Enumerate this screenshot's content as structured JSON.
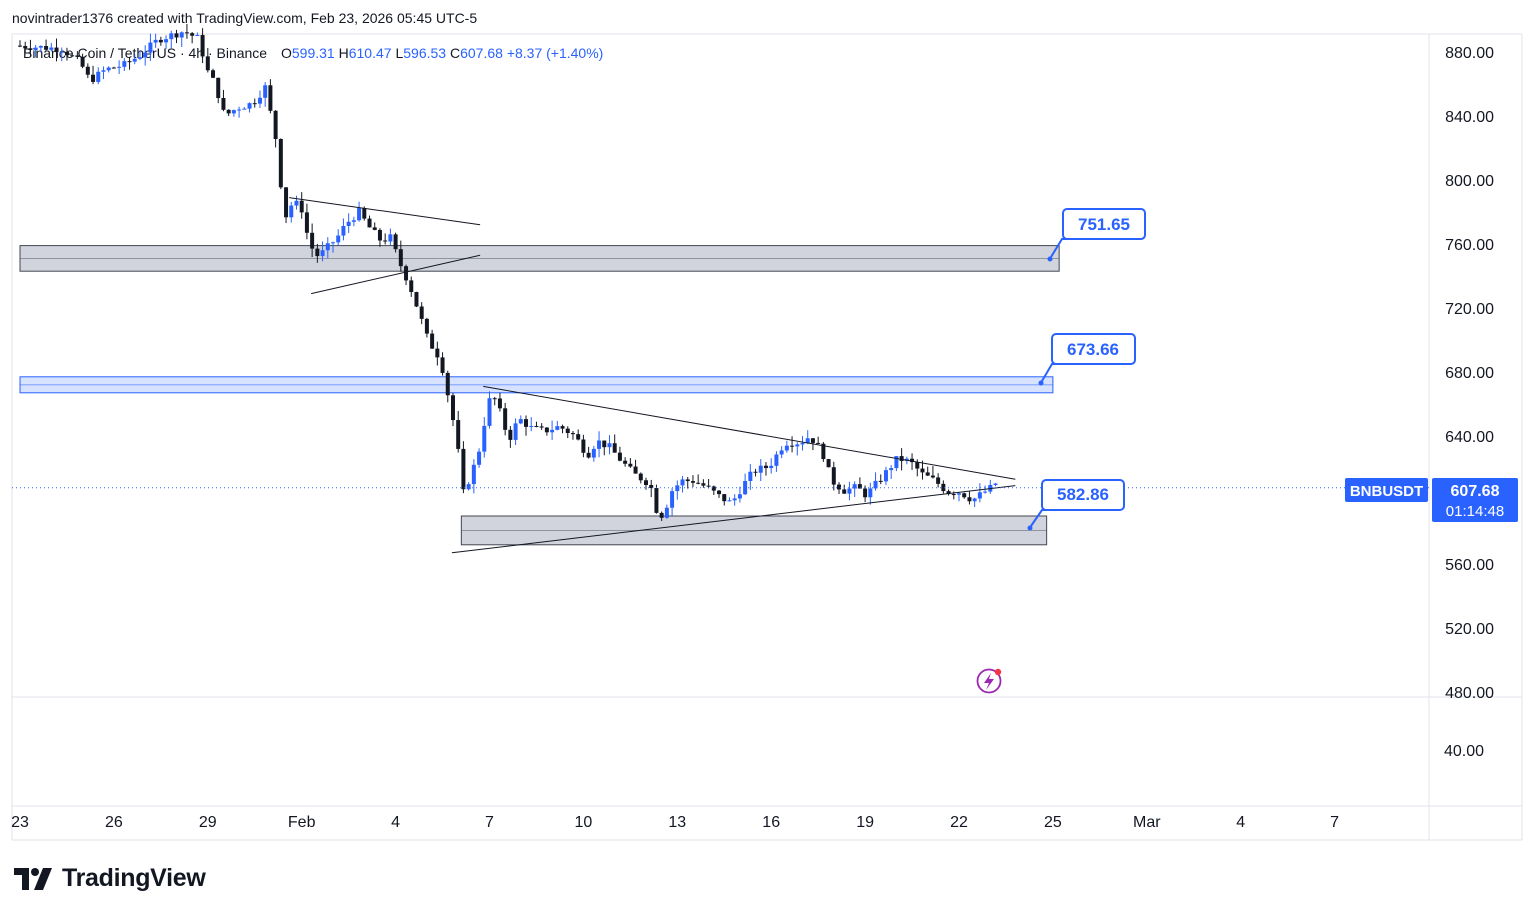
{
  "header": {
    "text": "novintrader1376 created with TradingView.com, Feb 23, 2026 05:45 UTC-5"
  },
  "legend": {
    "title": "Binance Coin / TetherUS · 4h · Binance",
    "open_label": "O",
    "open": "599.31",
    "high_label": "H",
    "high": "610.47",
    "low_label": "L",
    "low": "596.53",
    "close_label": "C",
    "close": "607.68",
    "change": "+8.37 (+1.40%)"
  },
  "colors": {
    "up": "#2962ff",
    "down": "#131722",
    "accent": "#2962ff",
    "zone_gray": "#d1d4dc",
    "zone_blue": "#d6e2ff"
  },
  "price_tag": {
    "symbol": "BNBUSDT",
    "price": "607.68",
    "countdown": "01:14:48"
  },
  "annotations": [
    {
      "text": "751.65"
    },
    {
      "text": "673.66"
    },
    {
      "text": "582.86"
    }
  ],
  "branding": {
    "logo_text": "TradingView"
  },
  "chart_data": {
    "type": "candlestick",
    "interval": "4h",
    "price_axis": [
      "880.00",
      "840.00",
      "800.00",
      "760.00",
      "720.00",
      "680.00",
      "640.00",
      "600.00",
      "560.00",
      "520.00",
      "480.00"
    ],
    "price_ticks": [
      880,
      840,
      800,
      760,
      720,
      680,
      640,
      600,
      560,
      520,
      480
    ],
    "volume_axis_label": "40.00",
    "x_ticks": [
      {
        "label": "23",
        "day": 23
      },
      {
        "label": "26",
        "day": 26
      },
      {
        "label": "29",
        "day": 29
      },
      {
        "label": "Feb",
        "day": 32
      },
      {
        "label": "4",
        "day": 35
      },
      {
        "label": "7",
        "day": 38
      },
      {
        "label": "10",
        "day": 41
      },
      {
        "label": "13",
        "day": 44
      },
      {
        "label": "16",
        "day": 47
      },
      {
        "label": "19",
        "day": 50
      },
      {
        "label": "22",
        "day": 53
      },
      {
        "label": "25",
        "day": 56
      },
      {
        "label": "Mar",
        "day": 59
      },
      {
        "label": "4",
        "day": 62
      },
      {
        "label": "7",
        "day": 65
      }
    ],
    "ylim": [
      460,
      895
    ],
    "zones": [
      {
        "name": "resistance-zone-upper",
        "from_day": 23,
        "to_day": 56.2,
        "low": 743,
        "high": 759,
        "color": "gray"
      },
      {
        "name": "resistance-zone-middle",
        "from_day": 23,
        "to_day": 56,
        "low": 667,
        "high": 677,
        "color": "blue"
      },
      {
        "name": "support-zone-lower",
        "from_day": 37.1,
        "to_day": 55.8,
        "low": 572,
        "high": 590,
        "color": "gray"
      }
    ],
    "trendlines": [
      {
        "name": "pennant-upper",
        "x1": 31.6,
        "y1": 789,
        "x2": 37.7,
        "y2": 772
      },
      {
        "name": "pennant-lower",
        "x1": 32.3,
        "y1": 729,
        "x2": 37.7,
        "y2": 753
      },
      {
        "name": "triangle-upper",
        "x1": 37.8,
        "y1": 671,
        "x2": 54.8,
        "y2": 613
      },
      {
        "name": "triangle-lower",
        "x1": 36.8,
        "y1": 567,
        "x2": 54.8,
        "y2": 609
      }
    ],
    "waypoints": [
      [
        23.0,
        884
      ],
      [
        23.8,
        883
      ],
      [
        24.5,
        882
      ],
      [
        25.1,
        873
      ],
      [
        25.4,
        862
      ],
      [
        25.9,
        869
      ],
      [
        26.5,
        872
      ],
      [
        27.0,
        878
      ],
      [
        27.6,
        888
      ],
      [
        28.4,
        893
      ],
      [
        28.9,
        888
      ],
      [
        29.1,
        870
      ],
      [
        29.4,
        860
      ],
      [
        29.7,
        840
      ],
      [
        30.1,
        845
      ],
      [
        30.6,
        848
      ],
      [
        31.0,
        858
      ],
      [
        31.4,
        820
      ],
      [
        31.6,
        775
      ],
      [
        31.9,
        787
      ],
      [
        32.2,
        781
      ],
      [
        32.4,
        760
      ],
      [
        32.7,
        752
      ],
      [
        33.0,
        758
      ],
      [
        33.3,
        764
      ],
      [
        33.6,
        773
      ],
      [
        34.0,
        780
      ],
      [
        34.3,
        771
      ],
      [
        34.7,
        762
      ],
      [
        35.0,
        764
      ],
      [
        35.3,
        748
      ],
      [
        35.6,
        735
      ],
      [
        35.9,
        718
      ],
      [
        36.2,
        700
      ],
      [
        36.6,
        688
      ],
      [
        36.9,
        660
      ],
      [
        37.1,
        640
      ],
      [
        37.2,
        625
      ],
      [
        37.3,
        603
      ],
      [
        37.5,
        612
      ],
      [
        37.8,
        628
      ],
      [
        38.0,
        648
      ],
      [
        38.2,
        665
      ],
      [
        38.4,
        662
      ],
      [
        38.6,
        648
      ],
      [
        38.8,
        638
      ],
      [
        39.1,
        651
      ],
      [
        39.5,
        645
      ],
      [
        39.9,
        643
      ],
      [
        40.4,
        646
      ],
      [
        40.9,
        640
      ],
      [
        41.3,
        628
      ],
      [
        41.6,
        637
      ],
      [
        42.0,
        633
      ],
      [
        42.4,
        624
      ],
      [
        42.8,
        616
      ],
      [
        43.3,
        610
      ],
      [
        43.5,
        594
      ],
      [
        43.7,
        590
      ],
      [
        44.0,
        606
      ],
      [
        44.3,
        612
      ],
      [
        44.7,
        612
      ],
      [
        45.1,
        608
      ],
      [
        45.6,
        601
      ],
      [
        45.9,
        598
      ],
      [
        46.3,
        610
      ],
      [
        46.6,
        618
      ],
      [
        47.1,
        621
      ],
      [
        47.6,
        636
      ],
      [
        48.1,
        636
      ],
      [
        48.4,
        640
      ],
      [
        48.8,
        630
      ],
      [
        49.1,
        612
      ],
      [
        49.5,
        606
      ],
      [
        49.9,
        608
      ],
      [
        50.2,
        603
      ],
      [
        50.7,
        614
      ],
      [
        51.2,
        626
      ],
      [
        51.6,
        624
      ],
      [
        52.0,
        616
      ],
      [
        52.4,
        612
      ],
      [
        52.8,
        605
      ],
      [
        53.2,
        605
      ],
      [
        53.6,
        600
      ],
      [
        53.9,
        604
      ],
      [
        54.3,
        609
      ],
      [
        54.7,
        625
      ],
      [
        55.1,
        628
      ],
      [
        55.5,
        632
      ],
      [
        55.9,
        628
      ],
      [
        56.3,
        625
      ],
      [
        56.6,
        612
      ],
      [
        56.8,
        602
      ],
      [
        56.9,
        590
      ],
      [
        57.0,
        599.31
      ],
      [
        57.1,
        607.68
      ]
    ]
  }
}
